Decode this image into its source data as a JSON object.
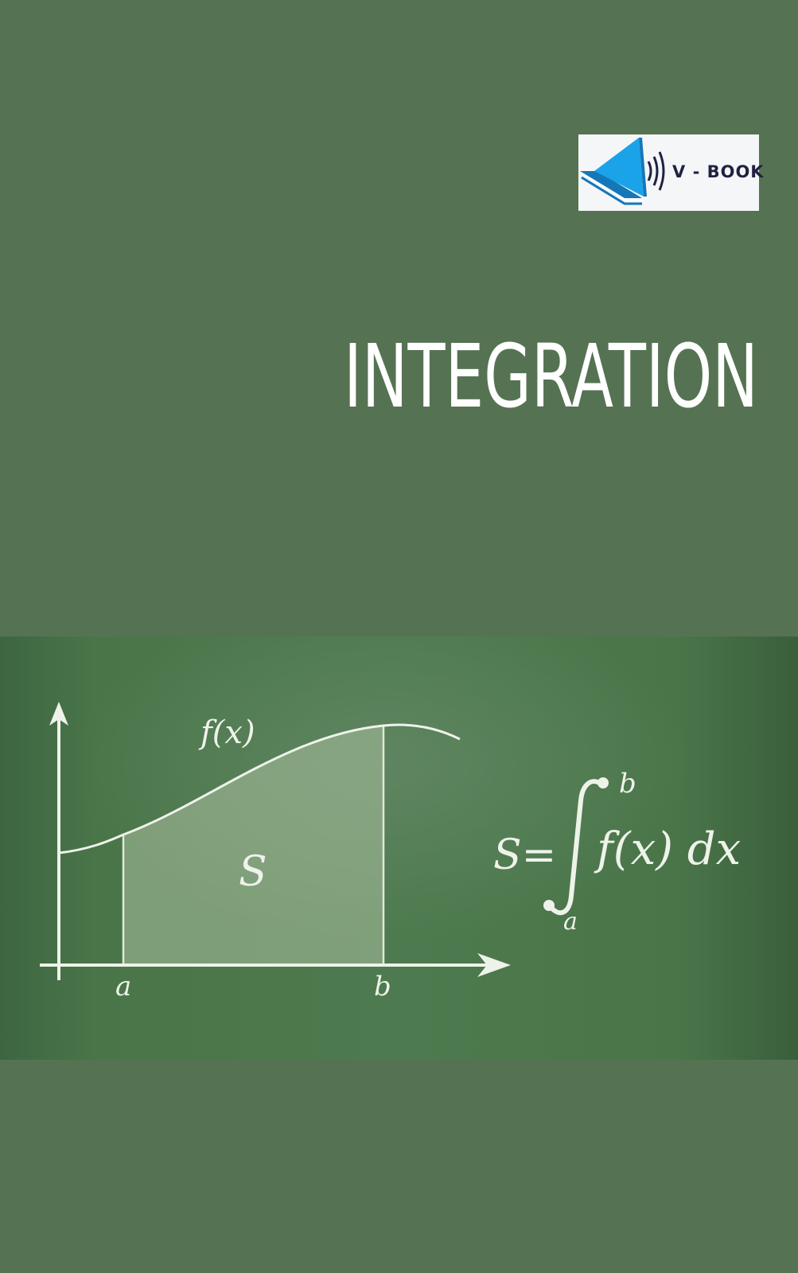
{
  "logo": {
    "text": "V - BOOK",
    "icon": "book-play-sound-icon",
    "colors": {
      "play": "#1aa3e8",
      "book": "#1477b8",
      "waves": "#1f2240"
    }
  },
  "title": "INTEGRATION",
  "illustration": {
    "curve_label": "f(x)",
    "area_label": "S",
    "lower_limit_label": "a",
    "upper_limit_label": "b",
    "formula": {
      "lhs": "S=",
      "integrand": "f(x) dx",
      "upper_limit": "b",
      "lower_limit": "a"
    }
  },
  "colors": {
    "background": "#557352",
    "chalk": "#eef3ea"
  }
}
